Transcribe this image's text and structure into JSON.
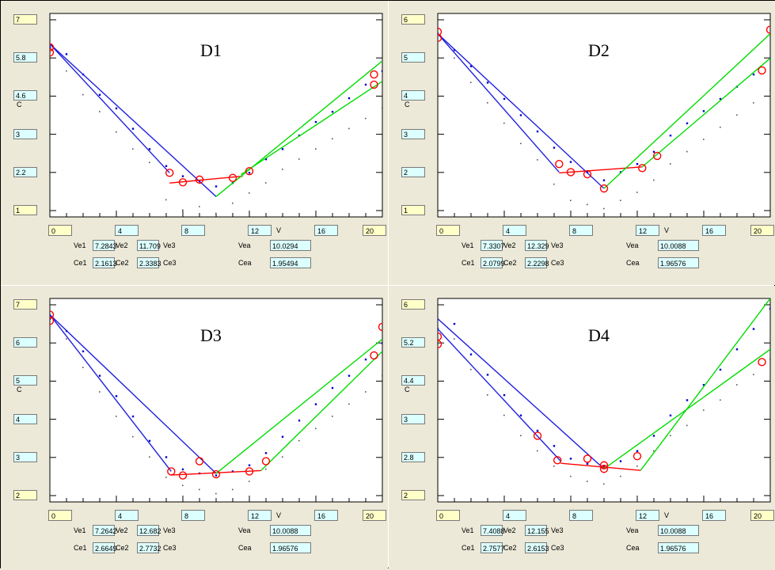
{
  "labels": {
    "y_axis": "C",
    "x_axis": "V",
    "ve1": "Ve1",
    "ve2": "Ve2",
    "ve3": "Ve3",
    "vea": "Vea",
    "ce1": "Ce1",
    "ce2": "Ce2",
    "ce3": "Ce3",
    "cea": "Cea"
  },
  "colors": {
    "panel_bg": "#ece9d8",
    "plot_bg": "#ffffff",
    "fit_left": "#2020e0",
    "fit_bottom": "#ff0000",
    "fit_right": "#00dd00",
    "points": "#0000cc",
    "gray_points": "#555555",
    "markers": "#ff0000"
  },
  "chart_data": [
    {
      "type": "scatter",
      "title": "D1",
      "ylim": [
        1,
        7
      ],
      "xlim": [
        0,
        20
      ],
      "y_ticks": [
        "7",
        "5.8",
        "4.6",
        "3",
        "2.2",
        "1"
      ],
      "x_ticks": [
        "0",
        "4",
        "8",
        "12",
        "16",
        "20"
      ],
      "params": {
        "Ve1": "7.2843",
        "Ve2": "11.709",
        "Ve3": "",
        "Vea": "10.0294",
        "Ce1": "2.1613",
        "Ce2": "2.3383",
        "Ce3": "",
        "Cea": "1.95494"
      },
      "fit_lines": {
        "left": [
          [
            0,
            6.1
          ],
          [
            10,
            1.6
          ]
        ],
        "left2": [
          [
            0,
            6.1
          ],
          [
            7.2,
            2.3
          ]
        ],
        "bottom": [
          [
            7.2,
            2.0
          ],
          [
            11.6,
            2.2
          ]
        ],
        "right": [
          [
            10,
            1.6
          ],
          [
            20,
            5.6
          ]
        ],
        "right2": [
          [
            11.5,
            2.25
          ],
          [
            20,
            5.0
          ]
        ]
      },
      "markers": [
        [
          0,
          6.0
        ],
        [
          0,
          5.85
        ],
        [
          7.2,
          2.3
        ],
        [
          8,
          2.02
        ],
        [
          9,
          2.1
        ],
        [
          11,
          2.15
        ],
        [
          12,
          2.35
        ],
        [
          19.5,
          5.2
        ],
        [
          19.5,
          4.9
        ]
      ],
      "points": [
        [
          0,
          6.0
        ],
        [
          1,
          5.8
        ],
        [
          2,
          5.2
        ],
        [
          3,
          4.6
        ],
        [
          4,
          4.2
        ],
        [
          5,
          3.6
        ],
        [
          6,
          3.0
        ],
        [
          7,
          2.5
        ],
        [
          8,
          2.2
        ],
        [
          9,
          2.05
        ],
        [
          10,
          1.9
        ],
        [
          11,
          2.0
        ],
        [
          12,
          2.3
        ],
        [
          13,
          2.7
        ],
        [
          14,
          3.0
        ],
        [
          15,
          3.4
        ],
        [
          16,
          3.8
        ],
        [
          17,
          4.1
        ],
        [
          18,
          4.5
        ],
        [
          19,
          4.9
        ],
        [
          20,
          5.3
        ]
      ],
      "gray_points": [
        [
          1,
          5.3
        ],
        [
          2,
          4.6
        ],
        [
          3,
          4.1
        ],
        [
          4,
          3.5
        ],
        [
          5,
          3.0
        ],
        [
          6,
          2.6
        ],
        [
          7,
          1.5
        ],
        [
          8,
          1.2
        ],
        [
          9,
          1.3
        ],
        [
          10,
          1.1
        ],
        [
          11,
          1.4
        ],
        [
          12,
          1.7
        ],
        [
          13,
          2.0
        ],
        [
          14,
          2.4
        ],
        [
          15,
          2.7
        ],
        [
          16,
          3.0
        ],
        [
          17,
          3.3
        ],
        [
          18,
          3.6
        ],
        [
          19,
          3.9
        ],
        [
          20,
          4.2
        ]
      ]
    },
    {
      "type": "scatter",
      "title": "D2",
      "ylim": [
        1,
        6
      ],
      "xlim": [
        0,
        20
      ],
      "y_ticks": [
        "6",
        "5",
        "4",
        "3",
        "2",
        "1"
      ],
      "x_ticks": [
        "0",
        "4",
        "8",
        "12",
        "16",
        "20"
      ],
      "params": {
        "Ve1": "7.3307",
        "Ve2": "12.329",
        "Ve3": "",
        "Vea": "10.0088",
        "Ce1": "2.0799",
        "Ce2": "2.2298",
        "Ce3": "",
        "Cea": "1.96576"
      },
      "fit_lines": {
        "left": [
          [
            0,
            5.5
          ],
          [
            10,
            1.7
          ]
        ],
        "left2": [
          [
            0,
            5.5
          ],
          [
            7.3,
            2.1
          ]
        ],
        "bottom": [
          [
            7.3,
            2.08
          ],
          [
            12.3,
            2.23
          ]
        ],
        "right": [
          [
            10,
            1.7
          ],
          [
            20,
            5.5
          ]
        ],
        "right2": [
          [
            12.3,
            2.23
          ],
          [
            20,
            4.9
          ]
        ]
      },
      "markers": [
        [
          0,
          5.55
        ],
        [
          0,
          5.4
        ],
        [
          7.3,
          2.3
        ],
        [
          8,
          2.1
        ],
        [
          9,
          2.05
        ],
        [
          10,
          1.7
        ],
        [
          12.3,
          2.2
        ],
        [
          13.2,
          2.5
        ],
        [
          19.5,
          4.6
        ],
        [
          20,
          5.6
        ]
      ],
      "points": [
        [
          0,
          5.5
        ],
        [
          1,
          5.1
        ],
        [
          2,
          4.7
        ],
        [
          3,
          4.3
        ],
        [
          4,
          3.9
        ],
        [
          5,
          3.5
        ],
        [
          6,
          3.1
        ],
        [
          7,
          2.7
        ],
        [
          8,
          2.35
        ],
        [
          9,
          2.1
        ],
        [
          10,
          1.9
        ],
        [
          11,
          2.1
        ],
        [
          12,
          2.3
        ],
        [
          13,
          2.6
        ],
        [
          14,
          3.0
        ],
        [
          15,
          3.3
        ],
        [
          16,
          3.6
        ],
        [
          17,
          3.9
        ],
        [
          18,
          4.2
        ],
        [
          19,
          4.5
        ],
        [
          20,
          4.9
        ]
      ],
      "gray_points": [
        [
          1,
          4.9
        ],
        [
          2,
          4.3
        ],
        [
          3,
          3.8
        ],
        [
          4,
          3.3
        ],
        [
          5,
          2.8
        ],
        [
          6,
          2.4
        ],
        [
          7,
          1.8
        ],
        [
          8,
          1.4
        ],
        [
          9,
          1.3
        ],
        [
          10,
          1.2
        ],
        [
          11,
          1.4
        ],
        [
          12,
          1.6
        ],
        [
          13,
          1.9
        ],
        [
          14,
          2.3
        ],
        [
          15,
          2.6
        ],
        [
          16,
          2.9
        ],
        [
          17,
          3.2
        ],
        [
          18,
          3.5
        ],
        [
          19,
          3.8
        ],
        [
          20,
          4.1
        ]
      ]
    },
    {
      "type": "scatter",
      "title": "D3",
      "ylim": [
        2,
        7
      ],
      "xlim": [
        0,
        20
      ],
      "y_ticks": [
        "7",
        "6",
        "5",
        "4",
        "3",
        "2"
      ],
      "x_ticks": [
        "0",
        "4",
        "8",
        "12",
        "16",
        "20"
      ],
      "params": {
        "Ve1": "7.2642",
        "Ve2": "12.682",
        "Ve3": "",
        "Vea": "10.0088",
        "Ce1": "2.6649",
        "Ce2": "2.7732",
        "Ce3": "",
        "Cea": "1.96576"
      },
      "fit_lines": {
        "left": [
          [
            0,
            6.6
          ],
          [
            10,
            2.7
          ]
        ],
        "left2": [
          [
            0,
            6.6
          ],
          [
            7.3,
            2.75
          ]
        ],
        "bottom": [
          [
            7.3,
            2.66
          ],
          [
            12.7,
            2.77
          ]
        ],
        "right": [
          [
            10,
            2.7
          ],
          [
            20,
            6.0
          ]
        ],
        "right2": [
          [
            12.7,
            2.77
          ],
          [
            20,
            5.7
          ]
        ]
      },
      "markers": [
        [
          0,
          6.6
        ],
        [
          0,
          6.45
        ],
        [
          7.3,
          2.75
        ],
        [
          8,
          2.65
        ],
        [
          9,
          3.0
        ],
        [
          10,
          2.68
        ],
        [
          12,
          2.75
        ],
        [
          13,
          3.0
        ],
        [
          19.5,
          5.6
        ],
        [
          20,
          6.3
        ]
      ],
      "points": [
        [
          0,
          6.5
        ],
        [
          1,
          6.2
        ],
        [
          2,
          5.7
        ],
        [
          3,
          5.1
        ],
        [
          4,
          4.6
        ],
        [
          5,
          4.1
        ],
        [
          6,
          3.5
        ],
        [
          7,
          3.1
        ],
        [
          8,
          2.8
        ],
        [
          9,
          2.7
        ],
        [
          10,
          2.65
        ],
        [
          11,
          2.75
        ],
        [
          12,
          2.9
        ],
        [
          13,
          3.2
        ],
        [
          14,
          3.6
        ],
        [
          15,
          4.0
        ],
        [
          16,
          4.4
        ],
        [
          17,
          4.8
        ],
        [
          18,
          5.1
        ],
        [
          19,
          5.5
        ],
        [
          20,
          5.9
        ]
      ],
      "gray_points": [
        [
          1,
          6.0
        ],
        [
          2,
          5.3
        ],
        [
          3,
          4.7
        ],
        [
          4,
          4.1
        ],
        [
          5,
          3.6
        ],
        [
          6,
          3.1
        ],
        [
          7,
          2.6
        ],
        [
          8,
          2.4
        ],
        [
          9,
          2.3
        ],
        [
          10,
          2.2
        ],
        [
          11,
          2.3
        ],
        [
          12,
          2.5
        ],
        [
          13,
          2.8
        ],
        [
          14,
          3.1
        ],
        [
          15,
          3.5
        ],
        [
          16,
          3.8
        ],
        [
          17,
          4.1
        ],
        [
          18,
          4.4
        ],
        [
          19,
          4.7
        ],
        [
          20,
          5.1
        ]
      ]
    },
    {
      "type": "scatter",
      "title": "D4",
      "ylim": [
        2,
        6
      ],
      "xlim": [
        0,
        20
      ],
      "y_ticks": [
        "6",
        "5.2",
        "4.4",
        "3",
        "2.8",
        "2"
      ],
      "x_ticks": [
        "0",
        "4",
        "8",
        "12",
        "16",
        "20"
      ],
      "params": {
        "Ve1": "7.4088",
        "Ve2": "12.155",
        "Ve3": "",
        "Vea": "10.0088",
        "Ce1": "2.7577",
        "Ce2": "2.6153",
        "Ce3": "",
        "Cea": "1.96576"
      },
      "fit_lines": {
        "left": [
          [
            0,
            5.6
          ],
          [
            10,
            2.65
          ]
        ],
        "left2": [
          [
            0,
            5.4
          ],
          [
            7.4,
            2.8
          ]
        ],
        "bottom": [
          [
            7.4,
            2.76
          ],
          [
            12.2,
            2.62
          ]
        ],
        "right": [
          [
            12.2,
            2.62
          ],
          [
            20,
            6.0
          ]
        ],
        "right2": [
          [
            10,
            2.65
          ],
          [
            20,
            5.0
          ]
        ]
      },
      "markers": [
        [
          0,
          5.25
        ],
        [
          0,
          5.1
        ],
        [
          6,
          3.3
        ],
        [
          7.2,
          2.82
        ],
        [
          9,
          2.85
        ],
        [
          10,
          2.65
        ],
        [
          10,
          2.72
        ],
        [
          12,
          2.9
        ],
        [
          19.5,
          4.75
        ]
      ],
      "points": [
        [
          0,
          5.4
        ],
        [
          1,
          5.5
        ],
        [
          2,
          4.9
        ],
        [
          3,
          4.5
        ],
        [
          4,
          4.1
        ],
        [
          5,
          3.7
        ],
        [
          6,
          3.4
        ],
        [
          7,
          3.1
        ],
        [
          8,
          2.85
        ],
        [
          9,
          2.75
        ],
        [
          10,
          2.7
        ],
        [
          11,
          2.8
        ],
        [
          12,
          3.0
        ],
        [
          13,
          3.3
        ],
        [
          14,
          3.7
        ],
        [
          15,
          4.0
        ],
        [
          16,
          4.3
        ],
        [
          17,
          4.6
        ],
        [
          18,
          5.0
        ],
        [
          19,
          5.4
        ],
        [
          20,
          5.8
        ]
      ],
      "gray_points": [
        [
          1,
          5.2
        ],
        [
          2,
          4.6
        ],
        [
          3,
          4.1
        ],
        [
          4,
          3.7
        ],
        [
          5,
          3.3
        ],
        [
          6,
          3.0
        ],
        [
          7,
          2.7
        ],
        [
          8,
          2.5
        ],
        [
          9,
          2.4
        ],
        [
          10,
          2.35
        ],
        [
          11,
          2.5
        ],
        [
          12,
          2.7
        ],
        [
          13,
          3.0
        ],
        [
          14,
          3.3
        ],
        [
          15,
          3.5
        ],
        [
          16,
          3.8
        ],
        [
          17,
          4.0
        ],
        [
          18,
          4.3
        ],
        [
          19,
          4.5
        ],
        [
          20,
          4.8
        ]
      ]
    }
  ]
}
